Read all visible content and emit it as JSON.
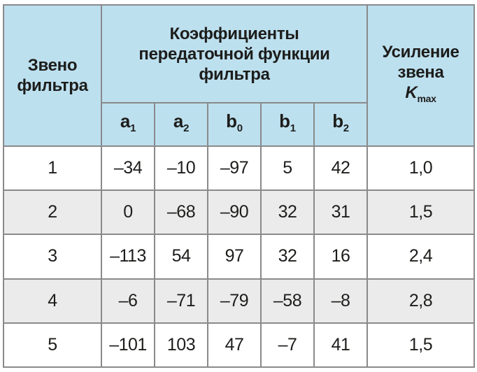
{
  "header": {
    "col_stage": [
      "Звено",
      "фильтра"
    ],
    "col_coeffs": [
      "Коэффициенты",
      "передаточной функции",
      "фильтра"
    ],
    "col_gain": [
      "Усиление",
      "звена"
    ],
    "gain_symbol": "K",
    "gain_subscript": "max",
    "coeff_columns": [
      {
        "letter": "a",
        "index": "1"
      },
      {
        "letter": "a",
        "index": "2"
      },
      {
        "letter": "b",
        "index": "0"
      },
      {
        "letter": "b",
        "index": "1"
      },
      {
        "letter": "b",
        "index": "2"
      }
    ]
  },
  "rows": [
    [
      "1",
      "–34",
      "–10",
      "–97",
      "5",
      "42",
      "1,0"
    ],
    [
      "2",
      "0",
      "–68",
      "–90",
      "32",
      "31",
      "1,5"
    ],
    [
      "3",
      "–113",
      "54",
      "97",
      "32",
      "16",
      "2,4"
    ],
    [
      "4",
      "–6",
      "–71",
      "–79",
      "–58",
      "–8",
      "2,8"
    ],
    [
      "5",
      "–101",
      "103",
      "47",
      "–7",
      "41",
      "1,5"
    ]
  ],
  "colors": {
    "header_bg": "#bde0ef",
    "shaded_row_bg": "#ebebeb",
    "border": "#8a8a8a"
  }
}
